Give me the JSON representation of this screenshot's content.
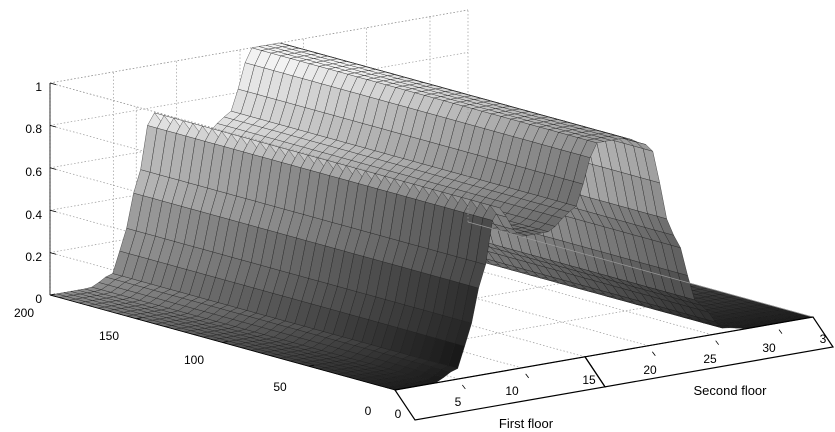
{
  "chart_data": {
    "type": "surface",
    "title": "",
    "xlabel": "First floor",
    "ylabel": "Second floor",
    "zlabel": "",
    "z_ticks": [
      "0",
      "0.2",
      "0.4",
      "0.6",
      "0.8",
      "1"
    ],
    "depth_ticks": [
      "0",
      "50",
      "100",
      "150",
      "200"
    ],
    "first_floor_ticks": [
      "0",
      "5",
      "10",
      "15"
    ],
    "second_floor_ticks": [
      "15",
      "20",
      "25",
      "30",
      "3"
    ],
    "zlim": [
      0,
      1
    ],
    "depth_lim": [
      0,
      200
    ],
    "floor_axis_lim": [
      0,
      33
    ],
    "grid": true,
    "colormap": "gray",
    "profile": {
      "x": [
        0,
        3,
        5,
        6,
        7,
        8,
        10,
        12,
        14,
        16,
        18,
        20,
        22,
        24,
        26,
        28,
        30,
        32,
        33
      ],
      "z": [
        0,
        0,
        0.05,
        0.25,
        0.5,
        0.78,
        0.62,
        0.62,
        0.7,
        1.0,
        1.0,
        0.95,
        0.5,
        0.15,
        0.02,
        0,
        0,
        0,
        0
      ]
    }
  }
}
